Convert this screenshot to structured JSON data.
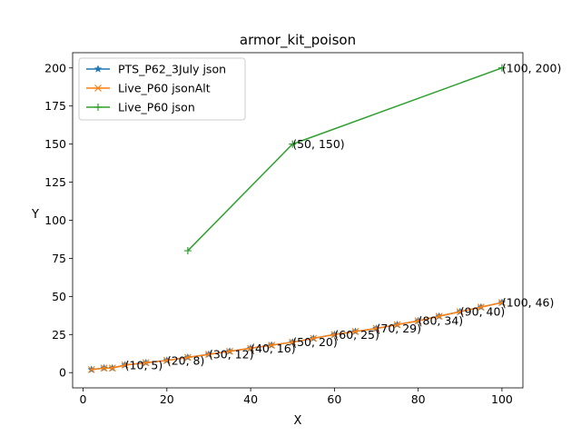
{
  "chart_data": {
    "type": "line",
    "title": "armor_kit_poison",
    "xlabel": "X",
    "ylabel": "Y",
    "xlim": [
      -2.5,
      105
    ],
    "ylim": [
      -10,
      210
    ],
    "xticks": [
      0,
      20,
      40,
      60,
      80,
      100
    ],
    "yticks": [
      0,
      25,
      50,
      75,
      100,
      125,
      150,
      175,
      200
    ],
    "grid": false,
    "legend_position": "upper-left",
    "series": [
      {
        "name": "PTS_P62_3July json",
        "color": "#1f77b4",
        "marker": "star",
        "points": [
          [
            2,
            2
          ],
          [
            5,
            3
          ],
          [
            7,
            3
          ],
          [
            10,
            5
          ],
          [
            15,
            6.5
          ],
          [
            20,
            8
          ],
          [
            25,
            10
          ],
          [
            30,
            12
          ],
          [
            35,
            14
          ],
          [
            40,
            16
          ],
          [
            45,
            18
          ],
          [
            50,
            20
          ],
          [
            55,
            22.5
          ],
          [
            60,
            25
          ],
          [
            65,
            27
          ],
          [
            70,
            29
          ],
          [
            75,
            31.5
          ],
          [
            80,
            34
          ],
          [
            85,
            37
          ],
          [
            90,
            40
          ],
          [
            95,
            43
          ],
          [
            100,
            46
          ]
        ],
        "annotations": []
      },
      {
        "name": "Live_P60 jsonAlt",
        "color": "#ff7f0e",
        "marker": "x",
        "points": [
          [
            2,
            2
          ],
          [
            5,
            3
          ],
          [
            7,
            3
          ],
          [
            10,
            5
          ],
          [
            15,
            6.5
          ],
          [
            20,
            8
          ],
          [
            25,
            10
          ],
          [
            30,
            12
          ],
          [
            35,
            14
          ],
          [
            40,
            16
          ],
          [
            45,
            18
          ],
          [
            50,
            20
          ],
          [
            55,
            22.5
          ],
          [
            60,
            25
          ],
          [
            65,
            27
          ],
          [
            70,
            29
          ],
          [
            75,
            31.5
          ],
          [
            80,
            34
          ],
          [
            85,
            37
          ],
          [
            90,
            40
          ],
          [
            95,
            43
          ],
          [
            100,
            46
          ]
        ],
        "annotations": [
          {
            "x": 10,
            "y": 5,
            "text": "(10, 5)"
          },
          {
            "x": 20,
            "y": 8,
            "text": "(20, 8)"
          },
          {
            "x": 30,
            "y": 12,
            "text": "(30, 12)"
          },
          {
            "x": 40,
            "y": 16,
            "text": "(40, 16)"
          },
          {
            "x": 50,
            "y": 20,
            "text": "(50, 20)"
          },
          {
            "x": 60,
            "y": 25,
            "text": "(60, 25)"
          },
          {
            "x": 70,
            "y": 29,
            "text": "(70, 29)"
          },
          {
            "x": 80,
            "y": 34,
            "text": "(80, 34)"
          },
          {
            "x": 90,
            "y": 40,
            "text": "(90, 40)"
          },
          {
            "x": 100,
            "y": 46,
            "text": "(100, 46)"
          }
        ]
      },
      {
        "name": "Live_P60 json",
        "color": "#2ca02c",
        "marker": "plus",
        "points": [
          [
            25,
            80
          ],
          [
            50,
            150
          ],
          [
            100,
            200
          ]
        ],
        "annotations": [
          {
            "x": 50,
            "y": 150,
            "text": "(50, 150)"
          },
          {
            "x": 100,
            "y": 200,
            "text": "(100, 200)"
          }
        ]
      }
    ]
  }
}
